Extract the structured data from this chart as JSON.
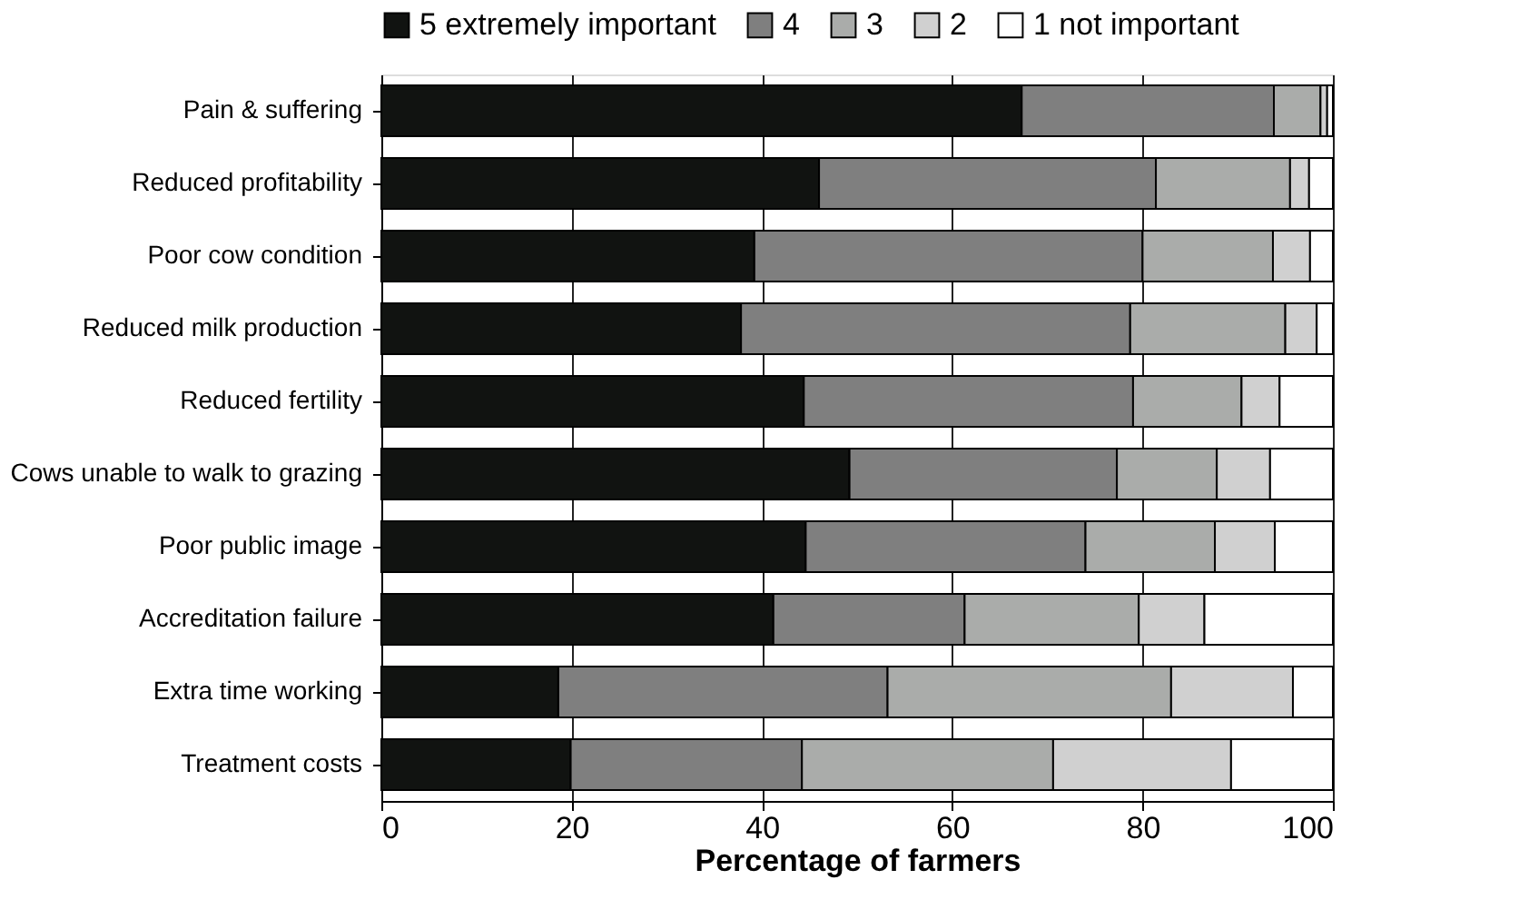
{
  "chart_data": {
    "type": "bar",
    "orientation": "horizontal",
    "stacked": true,
    "xlabel": "Percentage of farmers",
    "xlim": [
      0,
      100
    ],
    "xticks": [
      0,
      20,
      40,
      60,
      80,
      100
    ],
    "grid": "x",
    "legend": "top",
    "categories": [
      "Pain & suffering",
      "Reduced profitability",
      "Poor cow condition",
      "Reduced milk production",
      "Reduced fertility",
      "Cows unable to walk to grazing",
      "Poor public image",
      "Accreditation failure",
      "Extra time working",
      "Treatment costs"
    ],
    "series": [
      {
        "name": "5 extremely important",
        "color": "#111311",
        "values": [
          67.3,
          46,
          39.2,
          37.8,
          44.4,
          49.2,
          44.6,
          41.2,
          18.6,
          19.9
        ]
      },
      {
        "name": "4",
        "color": "#7f7f7f",
        "values": [
          26.5,
          35.4,
          40.8,
          40.9,
          34.6,
          28.1,
          29.4,
          20.1,
          34.6,
          24.3
        ]
      },
      {
        "name": "3",
        "color": "#aaacaa",
        "values": [
          4.9,
          14.1,
          13.7,
          16.3,
          11.4,
          10.5,
          13.6,
          18.3,
          29.8,
          26.4
        ]
      },
      {
        "name": "2",
        "color": "#d0d0d0",
        "values": [
          0.7,
          2,
          3.9,
          3.3,
          4,
          5.6,
          6.3,
          6.9,
          12.8,
          18.7
        ]
      },
      {
        "name": "1 not important",
        "color": "#ffffff",
        "values": [
          0.6,
          2.5,
          2.4,
          1.7,
          5.6,
          6.6,
          6.1,
          13.5,
          4.2,
          10.7
        ]
      }
    ]
  }
}
